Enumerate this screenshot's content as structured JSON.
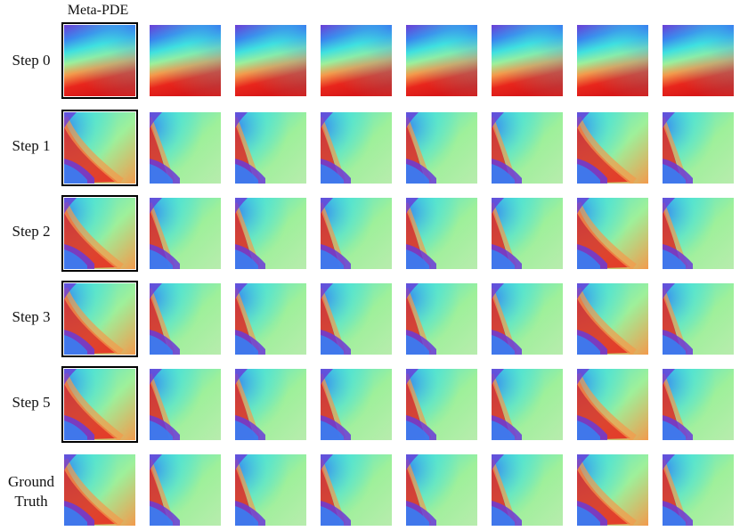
{
  "figure": {
    "column_title": "Meta-PDE",
    "rows": [
      {
        "label_lines": [
          "Step 0"
        ],
        "framed_first": true,
        "kind": "init"
      },
      {
        "label_lines": [
          "Step 1"
        ],
        "framed_first": true,
        "kind": "field"
      },
      {
        "label_lines": [
          "Step 2"
        ],
        "framed_first": true,
        "kind": "field"
      },
      {
        "label_lines": [
          "Step 3"
        ],
        "framed_first": true,
        "kind": "field"
      },
      {
        "label_lines": [
          "Step 5"
        ],
        "framed_first": true,
        "kind": "field"
      },
      {
        "label_lines": [
          "Ground",
          "Truth"
        ],
        "framed_first": false,
        "kind": "field"
      }
    ],
    "columns": 8,
    "colormap": "rainbow",
    "colors": {
      "frame": "#000000",
      "red": "#e8261c",
      "orange": "#f39a4c",
      "green": "#9ef09a",
      "cyan": "#3fe0e0",
      "blue": "#3a7ef0",
      "purple": "#6a3ad8"
    }
  }
}
